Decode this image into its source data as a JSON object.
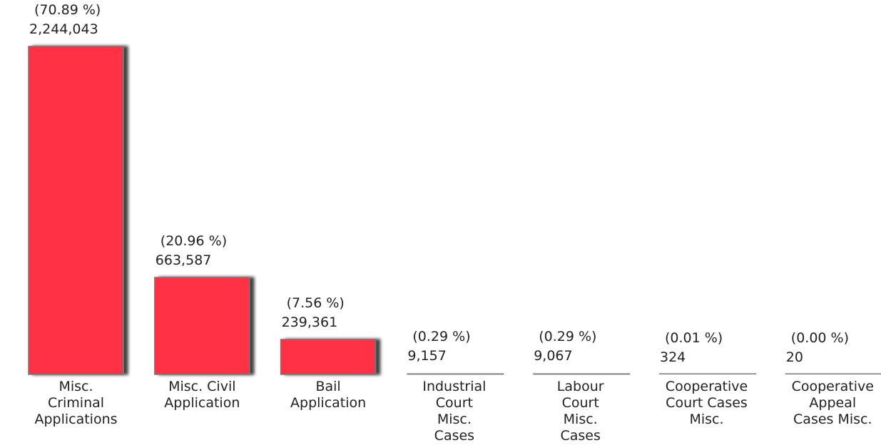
{
  "chart_data": {
    "type": "bar",
    "categories": [
      "Misc. Criminal Applications",
      "Misc. Civil Application",
      "Bail Application",
      "Industrial Court Misc. Cases",
      "Labour Court Misc. Cases",
      "Cooperative Court Cases Misc.",
      "Cooperative Appeal Cases Misc."
    ],
    "values": [
      2244043,
      663587,
      239361,
      9157,
      9067,
      324,
      20
    ],
    "value_labels": [
      "2,244,043",
      "663,587",
      "239,361",
      "9,157",
      "9,067",
      "324",
      "20"
    ],
    "percents": [
      70.89,
      20.96,
      7.56,
      0.29,
      0.29,
      0.01,
      0.0
    ],
    "percent_labels": [
      "(70.89 %)",
      "(20.96 %)",
      "(7.56 %)",
      "(0.29 %)",
      "(0.29 %)",
      "(0.01 %)",
      "(0.00 %)"
    ],
    "color": "#ff3344"
  }
}
